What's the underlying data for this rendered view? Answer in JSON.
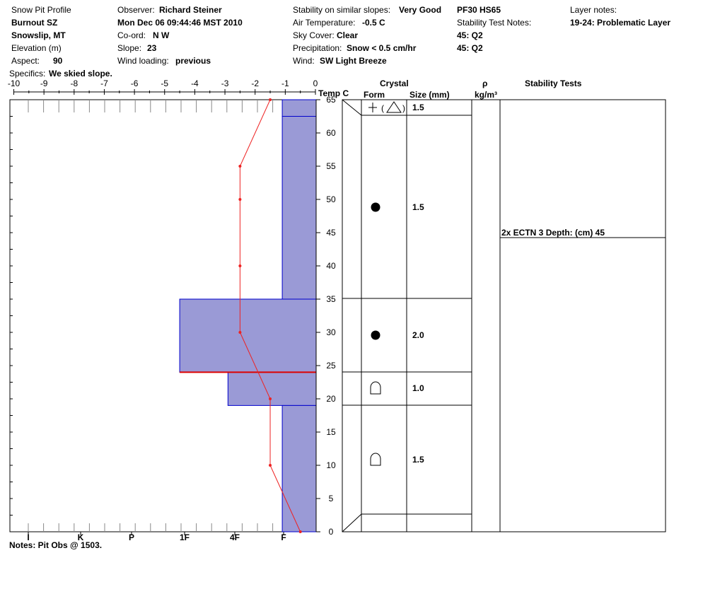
{
  "header": {
    "title": "Snow Pit Profile",
    "location": "Burnout SZ",
    "region": "Snowslip, MT",
    "elevation_label": "Elevation (m)",
    "aspect_label": "Aspect:",
    "aspect_value": "90",
    "specifics_label": "Specifics:",
    "specifics_value": "We skied slope.",
    "observer_label": "Observer:",
    "observer_value": "Richard Steiner",
    "datetime": "Mon Dec 06 09:44:46 MST 2010",
    "coord_label": "Co-ord:",
    "coord_value": "N  W",
    "slope_label": "Slope:",
    "slope_value": "23",
    "wind_loading_label": "Wind loading:",
    "wind_loading_value": "previous",
    "stability_label": "Stability on similar slopes:",
    "stability_value": "Very Good",
    "air_temp_label": "Air Temperature:",
    "air_temp_value": "-0.5 C",
    "sky_label": "Sky Cover:",
    "sky_value": "Clear",
    "precip_label": "Precipitation:",
    "precip_value": "Snow < 0.5 cm/hr",
    "wind_label": "Wind:",
    "wind_value": "SW Light Breeze",
    "pf_hs": "PF30 HS65",
    "stability_notes_label": "Stability Test Notes:",
    "stability_note_1": "45: Q2",
    "stability_note_2": "45: Q2",
    "layer_notes_label": "Layer notes:",
    "layer_note_1": "19-24: Problematic Layer"
  },
  "columns": {
    "temp_label": "Temp C",
    "crystal_label": "Crystal",
    "form_label": "Form",
    "size_label": "Size (mm)",
    "rho_label": "ρ",
    "density_unit": "kg/m³",
    "stability_tests_label": "Stability Tests"
  },
  "notes": "Notes:  Pit Obs @ 1503.",
  "chart_data": {
    "type": "snow-profile",
    "x_axis_temp": {
      "ticks": [
        -10,
        -9,
        -8,
        -7,
        -6,
        -5,
        -4,
        -3,
        -2,
        -1,
        0
      ],
      "range": [
        -10,
        0
      ],
      "label": "Temp C"
    },
    "y_axis": {
      "ticks": [
        0,
        5,
        10,
        15,
        20,
        25,
        30,
        35,
        40,
        45,
        50,
        55,
        60,
        65
      ],
      "range": [
        0,
        65
      ]
    },
    "hardness_ticks": [
      "I",
      "K",
      "P",
      "1F",
      "4F",
      "F"
    ],
    "layers": [
      {
        "bottom": 62.5,
        "top": 65,
        "hardness_temp": -1.1,
        "form": "dendrite-facet",
        "size": "1.5"
      },
      {
        "bottom": 35,
        "top": 62.5,
        "hardness_temp": -1.1,
        "form": "round",
        "size": "1.5"
      },
      {
        "bottom": 24,
        "top": 35,
        "hardness_temp": -4.5,
        "form": "round",
        "size": "2.0"
      },
      {
        "bottom": 19,
        "top": 24,
        "hardness_temp": -2.9,
        "form": "depth-hoar",
        "size": "1.0"
      },
      {
        "bottom": 0,
        "top": 19,
        "hardness_temp": -1.1,
        "form": "depth-hoar",
        "size": "1.5"
      }
    ],
    "temperature_profile": [
      {
        "depth": 65,
        "temp": -1.5
      },
      {
        "depth": 55,
        "temp": -2.5
      },
      {
        "depth": 50,
        "temp": -2.5
      },
      {
        "depth": 40,
        "temp": -2.5
      },
      {
        "depth": 30,
        "temp": -2.5
      },
      {
        "depth": 20,
        "temp": -1.5
      },
      {
        "depth": 10,
        "temp": -1.5
      },
      {
        "depth": 0,
        "temp": -0.5
      }
    ],
    "problem_layer_depth": 24,
    "stability_test": {
      "label": "2x ECTN 3   Depth: (cm) 45",
      "depth": 45
    },
    "colors": {
      "layer_fill": "#9a9ad6",
      "layer_stroke": "#0000cc",
      "temp_line": "#ee2222",
      "problem_line": "#dd0000"
    }
  }
}
